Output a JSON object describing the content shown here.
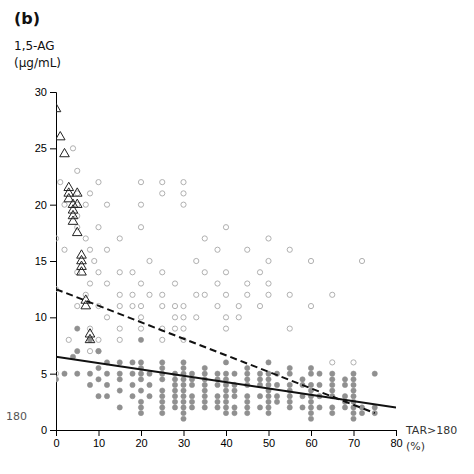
{
  "chart_data": {
    "type": "scatter",
    "title": "(b)",
    "y_label": [
      "1,5-AG",
      "(μg/mL)"
    ],
    "x_label": [
      "TAR>180",
      "(%)"
    ],
    "annotations": [
      "180"
    ],
    "xlim": [
      0,
      80
    ],
    "ylim": [
      0,
      30
    ],
    "xticks": [
      0,
      10,
      20,
      30,
      40,
      50,
      60,
      70,
      80
    ],
    "yticks": [
      0,
      5,
      10,
      15,
      20,
      25,
      30
    ],
    "grid": false,
    "series": [
      {
        "type": "scatter",
        "marker": "open-circle",
        "color": "#b0b0b0",
        "x": [
          0,
          0,
          0,
          1,
          2,
          2,
          3,
          4,
          5,
          5,
          5,
          5,
          5,
          5,
          5,
          7,
          7,
          7,
          8,
          8,
          8,
          8,
          8,
          9,
          10,
          10,
          10,
          10,
          10,
          10,
          12,
          12,
          12,
          12,
          15,
          15,
          15,
          15,
          15,
          15,
          18,
          18,
          18,
          20,
          20,
          20,
          20,
          20,
          20,
          20,
          22,
          22,
          25,
          25,
          25,
          25,
          25,
          25,
          25,
          28,
          28,
          28,
          28,
          30,
          30,
          30,
          30,
          30,
          30,
          30,
          33,
          33,
          33,
          35,
          35,
          35,
          38,
          38,
          38,
          40,
          40,
          40,
          40,
          40,
          43,
          43,
          45,
          45,
          45,
          48,
          48,
          50,
          50,
          50,
          50,
          55,
          55,
          55,
          60,
          60,
          65,
          65,
          70,
          72
        ],
        "values": [
          17,
          12.5,
          5,
          22,
          20,
          16,
          8,
          25,
          23,
          21,
          20,
          19,
          18,
          14,
          11,
          20,
          17,
          12,
          21,
          16,
          13,
          9,
          7,
          15,
          22,
          18,
          14,
          11,
          8,
          7,
          20,
          16,
          13,
          10,
          17,
          14,
          12,
          11,
          9,
          8,
          14,
          12,
          11,
          22,
          20,
          18,
          13,
          11,
          10,
          9,
          15,
          12,
          22,
          21,
          14,
          12,
          11,
          9,
          8,
          13,
          11,
          10,
          9,
          22,
          21,
          20,
          11,
          10,
          9,
          8,
          15,
          12,
          10,
          17,
          14,
          12,
          16,
          13,
          11,
          18,
          14,
          12,
          10,
          9,
          11,
          10,
          16,
          13,
          12,
          14,
          11,
          17,
          15,
          13,
          12,
          16,
          12,
          9,
          15,
          11,
          12,
          6,
          6,
          15
        ]
      },
      {
        "type": "scatter",
        "marker": "circle",
        "color": "#909090",
        "x": [
          0,
          2,
          4,
          5,
          5,
          5,
          8,
          8,
          8,
          10,
          10,
          10,
          10,
          12,
          12,
          12,
          12,
          15,
          15,
          15,
          15,
          15,
          18,
          18,
          18,
          18,
          20,
          20,
          20,
          20,
          20,
          20,
          20,
          20,
          20,
          22,
          22,
          22,
          25,
          25,
          25,
          25,
          25,
          25,
          25,
          25,
          25,
          28,
          28,
          28,
          28,
          28,
          28,
          28,
          30,
          30,
          30,
          30,
          30,
          30,
          30,
          30,
          30,
          30,
          30,
          32,
          32,
          32,
          32,
          32,
          32,
          35,
          35,
          35,
          35,
          35,
          35,
          35,
          35,
          38,
          38,
          38,
          38,
          38,
          38,
          40,
          40,
          40,
          40,
          40,
          40,
          40,
          40,
          40,
          42,
          42,
          42,
          42,
          42,
          42,
          45,
          45,
          45,
          45,
          45,
          45,
          45,
          45,
          48,
          48,
          48,
          48,
          48,
          50,
          50,
          50,
          50,
          50,
          50,
          50,
          50,
          50,
          52,
          52,
          52,
          52,
          55,
          55,
          55,
          55,
          55,
          55,
          55,
          58,
          58,
          58,
          58,
          60,
          60,
          60,
          60,
          60,
          60,
          60,
          60,
          60,
          62,
          62,
          62,
          62,
          65,
          65,
          65,
          65,
          65,
          65,
          65,
          68,
          68,
          68,
          68,
          68,
          70,
          70,
          70,
          70,
          70,
          70,
          70,
          70,
          70,
          72,
          72,
          75,
          75,
          75
        ],
        "values": [
          4.5,
          5,
          6.5,
          9,
          7,
          5,
          8,
          5,
          4,
          7,
          5.5,
          4.5,
          3,
          6,
          5,
          4,
          3,
          6,
          5,
          4.5,
          3.5,
          2,
          6,
          5,
          4,
          3,
          8,
          6,
          5.5,
          5,
          4.5,
          3.5,
          2.5,
          2,
          1.5,
          5,
          4,
          3,
          6,
          5.5,
          5,
          4.5,
          3.5,
          3,
          2.5,
          2,
          1.5,
          5,
          4.5,
          4,
          3.5,
          3,
          2.5,
          2,
          6,
          5.5,
          5,
          4.5,
          4,
          3.5,
          3,
          2.5,
          2,
          1.5,
          1,
          5,
          4.5,
          4,
          3,
          2.5,
          2,
          5.5,
          5,
          4.5,
          4,
          3.5,
          3,
          2.5,
          2,
          5,
          4.5,
          4,
          3,
          2.5,
          2,
          6,
          5,
          4.5,
          4,
          3.5,
          3,
          2.5,
          2,
          1.5,
          5,
          4,
          3.5,
          3,
          2,
          1.5,
          5.5,
          5,
          4.5,
          4,
          3,
          2.5,
          2,
          1.5,
          5,
          4.5,
          4,
          3,
          2,
          6,
          5,
          4.5,
          4,
          3.5,
          3,
          2.5,
          2,
          1.5,
          5,
          4,
          3,
          2.5,
          5.5,
          5,
          4,
          3.5,
          3,
          2.5,
          2,
          4.5,
          4,
          3,
          2,
          5.5,
          5,
          4,
          3.5,
          3,
          2.5,
          2,
          1.5,
          1,
          5,
          4,
          3,
          2,
          5,
          4.5,
          4,
          3.5,
          3,
          2,
          1.5,
          4.5,
          4,
          3,
          2.5,
          2,
          5,
          4.5,
          4,
          3.5,
          3,
          2.5,
          2,
          1.5,
          1,
          2,
          1.5,
          5,
          2,
          1.5
        ]
      },
      {
        "type": "scatter",
        "marker": "open-triangle",
        "color": "#222222",
        "x": [
          0,
          1,
          2,
          3,
          3,
          3,
          4,
          4,
          4,
          4,
          5,
          5,
          5,
          6,
          6,
          6,
          6,
          7,
          7,
          8,
          8
        ],
        "values": [
          28.5,
          26,
          24.5,
          21.5,
          21,
          20.5,
          20,
          19.5,
          19,
          18.5,
          21,
          20,
          17.5,
          15.5,
          15,
          14.5,
          14,
          11.5,
          11,
          8.5,
          8
        ]
      },
      {
        "type": "line",
        "line_style": "solid",
        "color": "#111111",
        "x": [
          0,
          80
        ],
        "values": [
          6.5,
          2.0
        ]
      },
      {
        "type": "line",
        "line_style": "dashed",
        "color": "#111111",
        "x": [
          0,
          75
        ],
        "values": [
          12.5,
          1.5
        ]
      }
    ]
  }
}
